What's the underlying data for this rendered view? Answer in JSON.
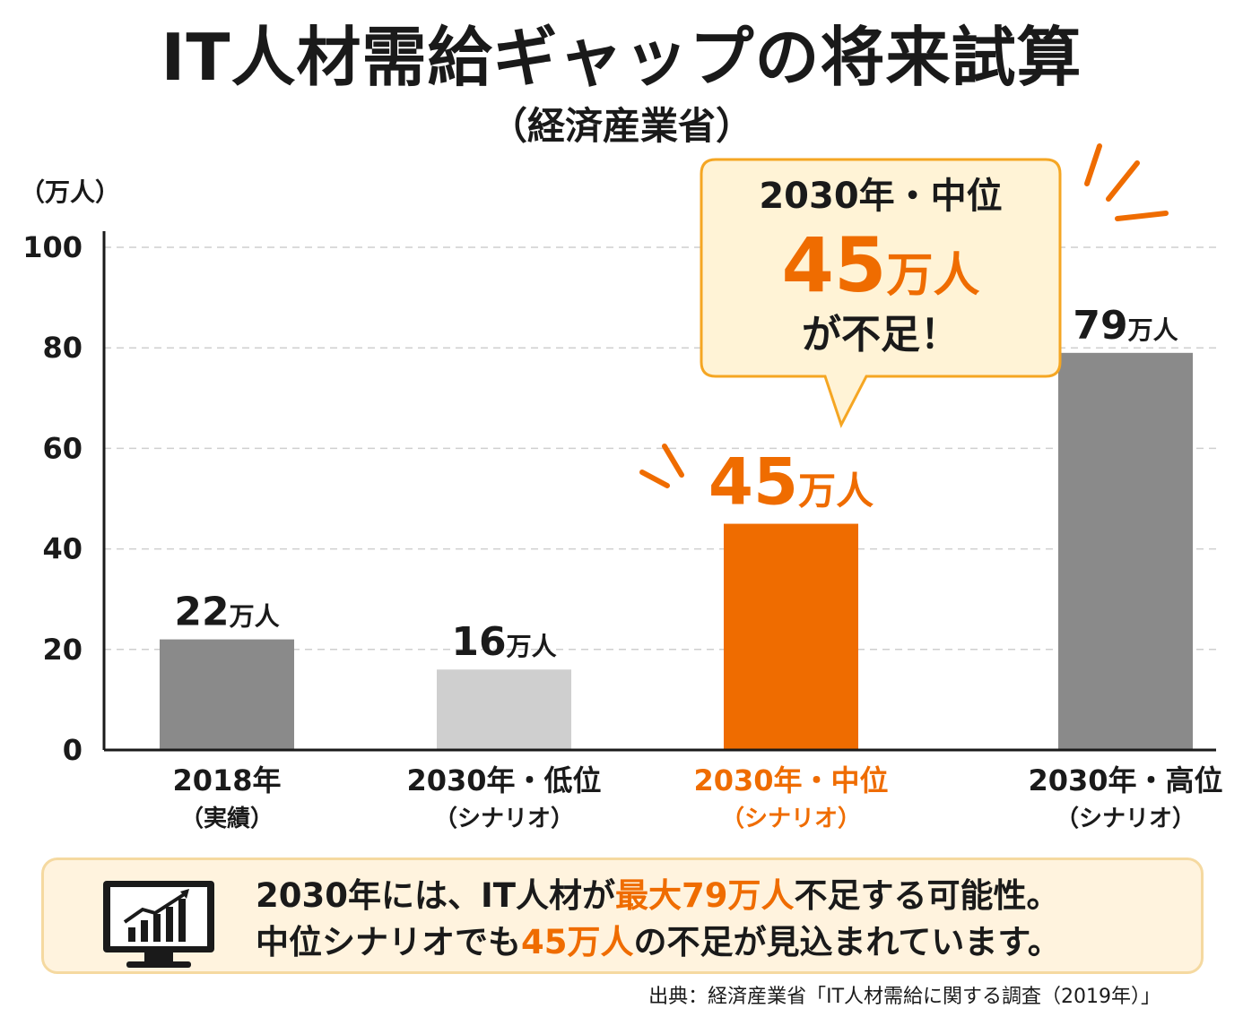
{
  "title": "IT人材需給ギャップの将来試算",
  "subtitle": "（経済産業省）",
  "unit": "（万人）",
  "colors": {
    "accent": "#ef6c00",
    "bar_dark": "#8a8a8a",
    "bar_light": "#cfcfcf",
    "callout_bg": "#fff3d6",
    "callout_border": "#f5a623"
  },
  "callout": {
    "line1": "2030年・中位",
    "value": "45",
    "unit": "万人",
    "line3": "が不足！"
  },
  "chart_data": {
    "type": "bar",
    "title": "IT人材需給ギャップの将来試算",
    "ylabel": "（万人）",
    "ylim": [
      0,
      100
    ],
    "yticks": [
      0,
      20,
      40,
      60,
      80,
      100
    ],
    "grid": true,
    "categories": [
      "2018年",
      "2030年・低位",
      "2030年・中位",
      "2030年・高位"
    ],
    "category_sublabels": [
      "（実績）",
      "（シナリオ）",
      "（シナリオ）",
      "（シナリオ）"
    ],
    "values": [
      22,
      16,
      45,
      79
    ],
    "value_labels": [
      "22",
      "16",
      "45",
      "79"
    ],
    "value_unit": "万人",
    "bar_colors": [
      "#8a8a8a",
      "#cfcfcf",
      "#ef6c00",
      "#8a8a8a"
    ],
    "highlight_index": 2
  },
  "summary": {
    "icon": "monitor-chart-icon",
    "line1_prefix": "2030年には、IT人材が",
    "line1_highlight": "最大79万人",
    "line1_suffix": "不足する可能性。",
    "line2_prefix": "中位シナリオでも",
    "line2_highlight": "45万人",
    "line2_suffix": "の不足が見込まれています。"
  },
  "source": "出典：経済産業省「IT人材需給に関する調査（2019年）」"
}
